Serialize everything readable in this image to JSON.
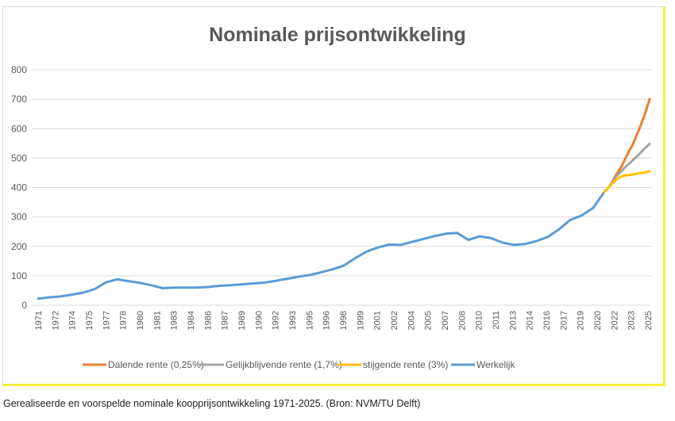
{
  "caption": "Gerealiseerde en voorspelde nominale koopprijsontwikkeling 1971-2025. (Bron:  NVM/TU Delft)",
  "chart_data": {
    "type": "line",
    "title": "Nominale prijsontwikkeling",
    "xlabel": "",
    "ylabel": "",
    "ylim": [
      0,
      800
    ],
    "yticks": [
      0,
      100,
      200,
      300,
      400,
      500,
      600,
      700,
      800
    ],
    "xlim": [
      1971,
      2025
    ],
    "xtick_labels": [
      "1971",
      "1972",
      "1974",
      "1975",
      "1977",
      "1978",
      "1980",
      "1981",
      "1983",
      "1984",
      "1986",
      "1987",
      "1989",
      "1990",
      "1992",
      "1993",
      "1995",
      "1996",
      "1998",
      "1999",
      "2001",
      "2002",
      "2004",
      "2005",
      "2007",
      "2008",
      "2010",
      "2011",
      "2013",
      "2014",
      "2016",
      "2017",
      "2019",
      "2020",
      "2022",
      "2023",
      "2025"
    ],
    "grid": true,
    "legend_position": "bottom",
    "series": [
      {
        "name": "Dalende rente (0,25%)",
        "color": "#ed7d31",
        "x": [
          2021,
          2021.5,
          2022,
          2022.5,
          2023,
          2023.5,
          2024,
          2024.5,
          2025
        ],
        "values": [
          385,
          405,
          440,
          470,
          510,
          545,
          590,
          640,
          700
        ]
      },
      {
        "name": "Gelijkblijvende rente (1,7%)",
        "color": "#a5a5a5",
        "x": [
          2021,
          2021.5,
          2022,
          2022.5,
          2023,
          2023.5,
          2024,
          2024.5,
          2025
        ],
        "values": [
          385,
          405,
          435,
          455,
          475,
          492,
          510,
          530,
          548
        ]
      },
      {
        "name": "stijgende rente (3%)",
        "color": "#ffc000",
        "x": [
          2021,
          2021.5,
          2022,
          2022.5,
          2023,
          2023.5,
          2024,
          2024.5,
          2025
        ],
        "values": [
          385,
          405,
          425,
          438,
          442,
          444,
          448,
          451,
          455
        ]
      },
      {
        "name": "Werkelijk",
        "color": "#5b9bd5",
        "x": [
          1971,
          1972,
          1973,
          1974,
          1975,
          1976,
          1977,
          1978,
          1979,
          1980,
          1981,
          1982,
          1983,
          1984,
          1985,
          1986,
          1987,
          1988,
          1989,
          1990,
          1991,
          1992,
          1993,
          1994,
          1995,
          1996,
          1997,
          1998,
          1999,
          2000,
          2001,
          2002,
          2003,
          2004,
          2005,
          2006,
          2007,
          2008,
          2009,
          2010,
          2011,
          2012,
          2013,
          2014,
          2015,
          2016,
          2017,
          2018,
          2019,
          2020,
          2021
        ],
        "values": [
          22,
          27,
          30,
          36,
          43,
          55,
          78,
          88,
          82,
          76,
          68,
          58,
          60,
          60,
          60,
          62,
          66,
          68,
          71,
          74,
          77,
          83,
          90,
          97,
          103,
          112,
          122,
          135,
          160,
          182,
          196,
          206,
          205,
          215,
          225,
          235,
          243,
          246,
          222,
          234,
          228,
          213,
          205,
          208,
          218,
          232,
          258,
          290,
          305,
          330,
          385
        ]
      }
    ]
  }
}
